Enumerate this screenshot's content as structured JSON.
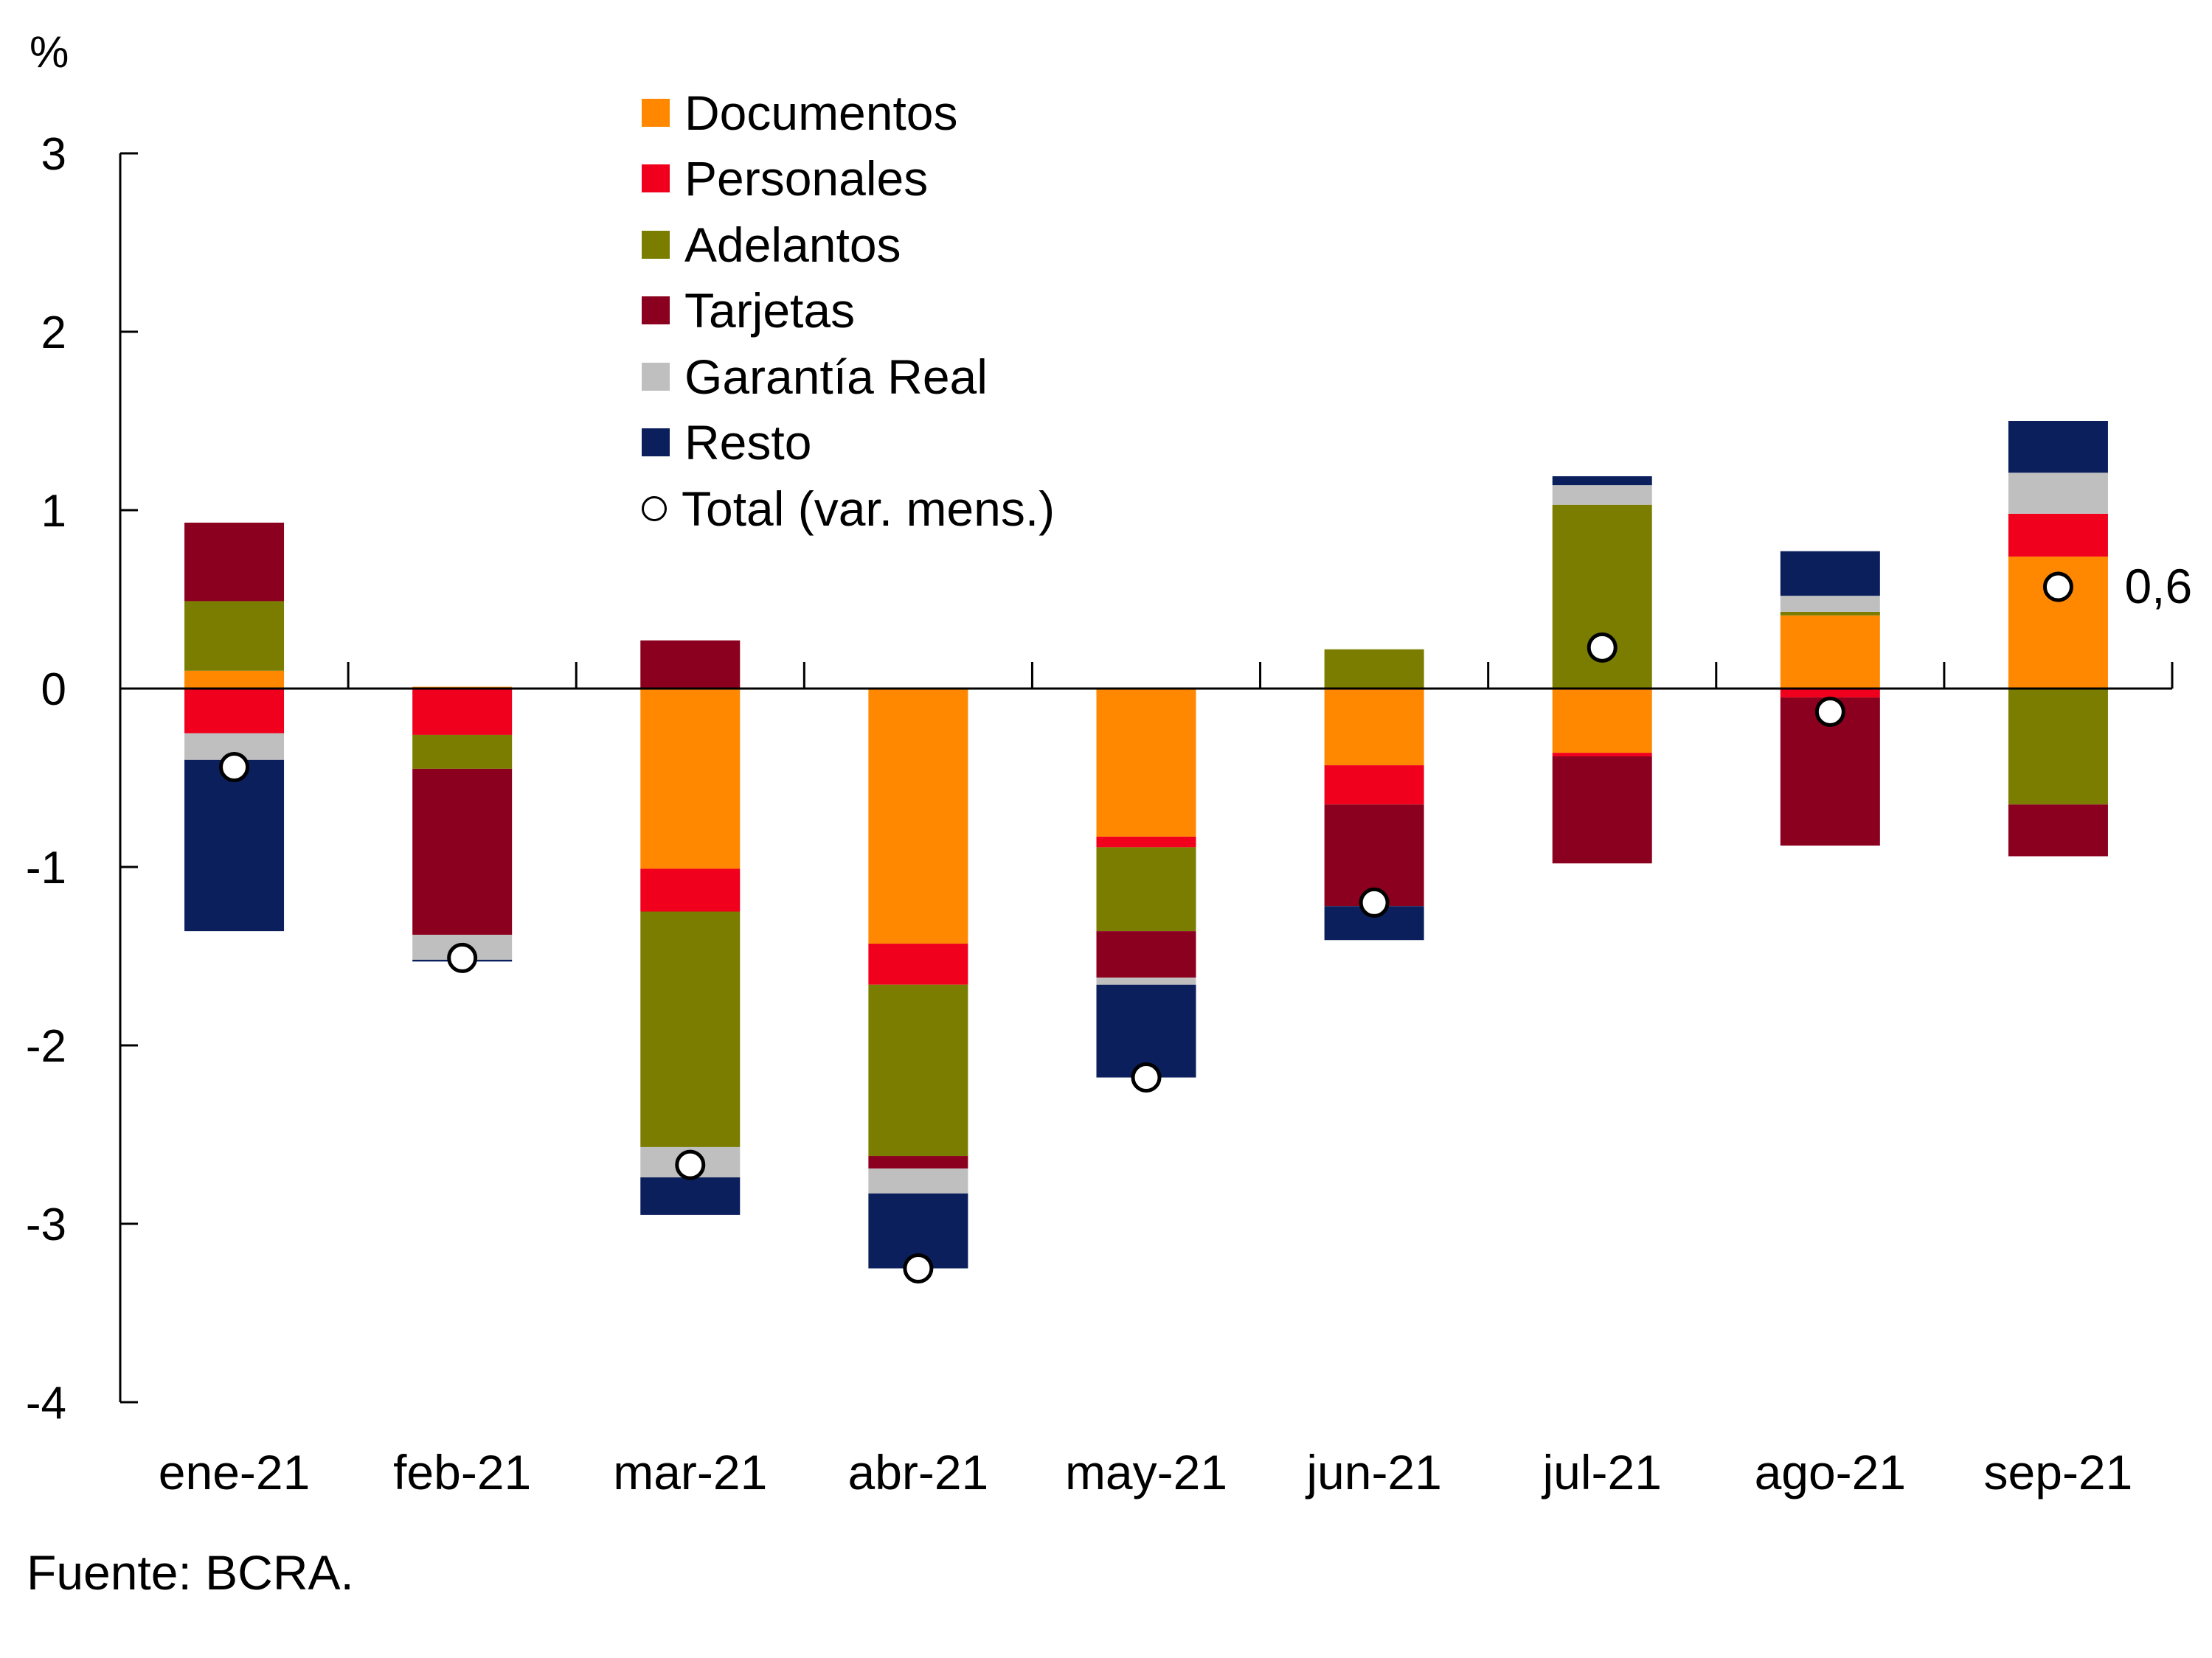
{
  "chart_data": {
    "type": "bar",
    "stacked": true,
    "title": "",
    "ylabel": "%",
    "xlabel": "",
    "ylim": [
      -4,
      3
    ],
    "yticks": [
      3,
      2,
      1,
      0,
      -1,
      -2,
      -3,
      -4
    ],
    "ytick_labels": [
      "3",
      "2",
      "1",
      "0",
      "-1",
      "-2",
      "-3",
      "-4"
    ],
    "grid": false,
    "legend_position": "top-center",
    "categories": [
      "ene-21",
      "feb-21",
      "mar-21",
      "abr-21",
      "may-21",
      "jun-21",
      "jul-21",
      "ago-21",
      "sep-21"
    ],
    "series": [
      {
        "name": "Documentos",
        "color": "#FF8800",
        "values": [
          0.1,
          0.01,
          -1.01,
          -1.43,
          -0.83,
          -0.43,
          -0.36,
          0.41,
          0.74
        ]
      },
      {
        "name": "Personales",
        "color": "#F0001C",
        "values": [
          -0.25,
          -0.26,
          -0.24,
          -0.23,
          -0.06,
          -0.22,
          -0.02,
          -0.05,
          0.24
        ]
      },
      {
        "name": "Adelantos",
        "color": "#7A7D00",
        "values": [
          0.39,
          -0.19,
          -1.32,
          -0.96,
          -0.47,
          0.22,
          1.03,
          0.02,
          -0.65
        ]
      },
      {
        "name": "Tarjetas",
        "color": "#8B001E",
        "values": [
          0.44,
          -0.93,
          0.27,
          -0.07,
          -0.26,
          -0.57,
          -0.6,
          -0.83,
          -0.29
        ]
      },
      {
        "name": "Garantía Real",
        "color": "#BFBFBF",
        "values": [
          -0.15,
          -0.14,
          -0.17,
          -0.14,
          -0.04,
          0.0,
          0.11,
          0.09,
          0.23
        ]
      },
      {
        "name": "Resto",
        "color": "#0A1F5C",
        "values": [
          -0.96,
          -0.01,
          -0.21,
          -0.42,
          -0.52,
          -0.19,
          0.05,
          0.25,
          0.29
        ]
      }
    ],
    "total": {
      "name": "Total (var. mens.)",
      "marker": "open-circle",
      "values": [
        -0.44,
        -1.51,
        -2.67,
        -3.25,
        -2.18,
        -1.2,
        0.23,
        -0.13,
        0.57
      ]
    },
    "annotations": [
      {
        "category": "sep-21",
        "series": "Total (var. mens.)",
        "text": "0,6"
      }
    ],
    "source": "Fuente: BCRA."
  }
}
